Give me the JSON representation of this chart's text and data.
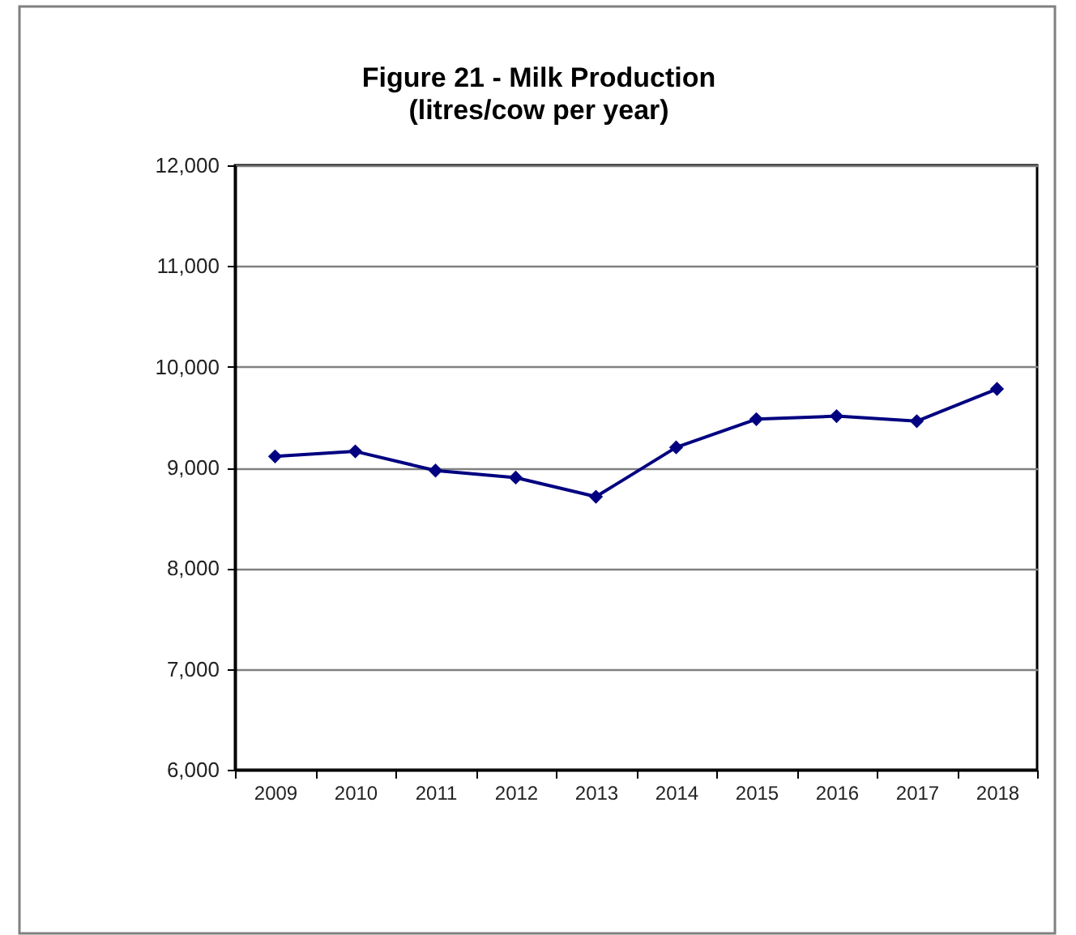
{
  "chart_data": {
    "type": "line",
    "title": "Figure 21 - Milk Production",
    "subtitle": "(litres/cow per year)",
    "categories": [
      "2009",
      "2010",
      "2011",
      "2012",
      "2013",
      "2014",
      "2015",
      "2016",
      "2017",
      "2018"
    ],
    "series": [
      {
        "color": "#000080",
        "values": [
          9110,
          9160,
          8970,
          8900,
          8710,
          9200,
          9480,
          9510,
          9460,
          9780
        ]
      }
    ],
    "ylim": [
      6000,
      12000
    ],
    "yticks": [
      {
        "value": 6000,
        "label": "6,000"
      },
      {
        "value": 7000,
        "label": "7,000"
      },
      {
        "value": 8000,
        "label": "8,000"
      },
      {
        "value": 9000,
        "label": "9,000"
      },
      {
        "value": 10000,
        "label": "10,000"
      },
      {
        "value": 11000,
        "label": "11,000"
      },
      {
        "value": 12000,
        "label": "12,000"
      }
    ],
    "grid": "y",
    "marker": "diamond",
    "line_style": "solid"
  }
}
